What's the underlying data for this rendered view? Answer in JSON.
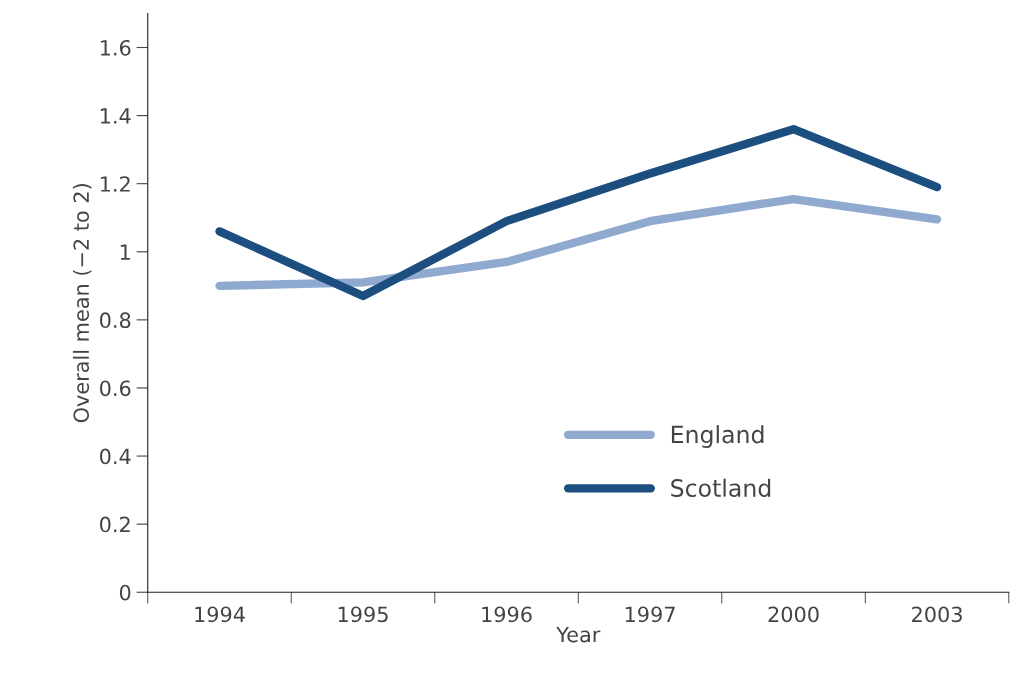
{
  "chart_data": {
    "type": "line",
    "xlabel": "Year",
    "ylabel": "Overall mean (−2 to 2)",
    "categories": [
      "1994",
      "1995",
      "1996",
      "1997",
      "2000",
      "2003"
    ],
    "series": [
      {
        "name": "England",
        "color": "#8fa9cf",
        "values": [
          0.9,
          0.91,
          0.97,
          1.09,
          1.155,
          1.095
        ]
      },
      {
        "name": "Scotland",
        "color": "#1c4e80",
        "values": [
          1.06,
          0.87,
          1.09,
          1.23,
          1.36,
          1.19
        ]
      }
    ],
    "ylim": [
      0,
      1.7
    ],
    "yticks": [
      0,
      0.2,
      0.4,
      0.6,
      0.8,
      1,
      1.2,
      1.4,
      1.6
    ],
    "grid": false,
    "legend": "bottom right",
    "marker": "none",
    "line_style": "solid"
  }
}
